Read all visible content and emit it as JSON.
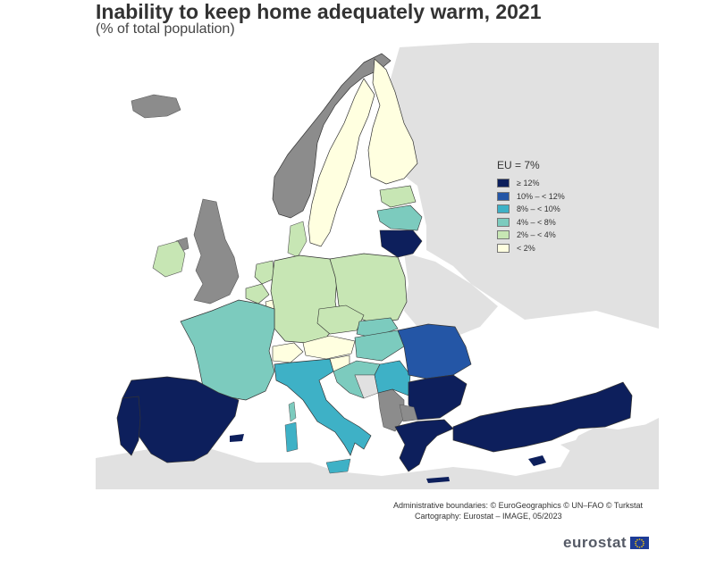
{
  "title": "Inability to keep home adequately warm, 2021",
  "subtitle": "(% of total population)",
  "legend": {
    "title": "EU = 7%",
    "items": [
      {
        "label": "≥ 12%",
        "color": "#0d1f5c"
      },
      {
        "label": "10% – < 12%",
        "color": "#2456a6"
      },
      {
        "label": "8% – < 10%",
        "color": "#3eb1c6"
      },
      {
        "label": "4% – < 8%",
        "color": "#7ccbbe"
      },
      {
        "label": "2% – < 4%",
        "color": "#c7e6b4"
      },
      {
        "label": "< 2%",
        "color": "#ffffe0"
      }
    ]
  },
  "colors": {
    "no_data": "#8c8c8c",
    "non_covered": "#e1e1e1",
    "sea": "#ffffff",
    "border": "#333333"
  },
  "credits": {
    "line1": "Administrative boundaries: © EuroGeographics © UN–FAO © Turkstat",
    "line2": "Cartography: Eurostat – IMAGE, 05/2023"
  },
  "brand": {
    "text": "eurostat",
    "flag_icon": "eu-flag-icon"
  }
}
